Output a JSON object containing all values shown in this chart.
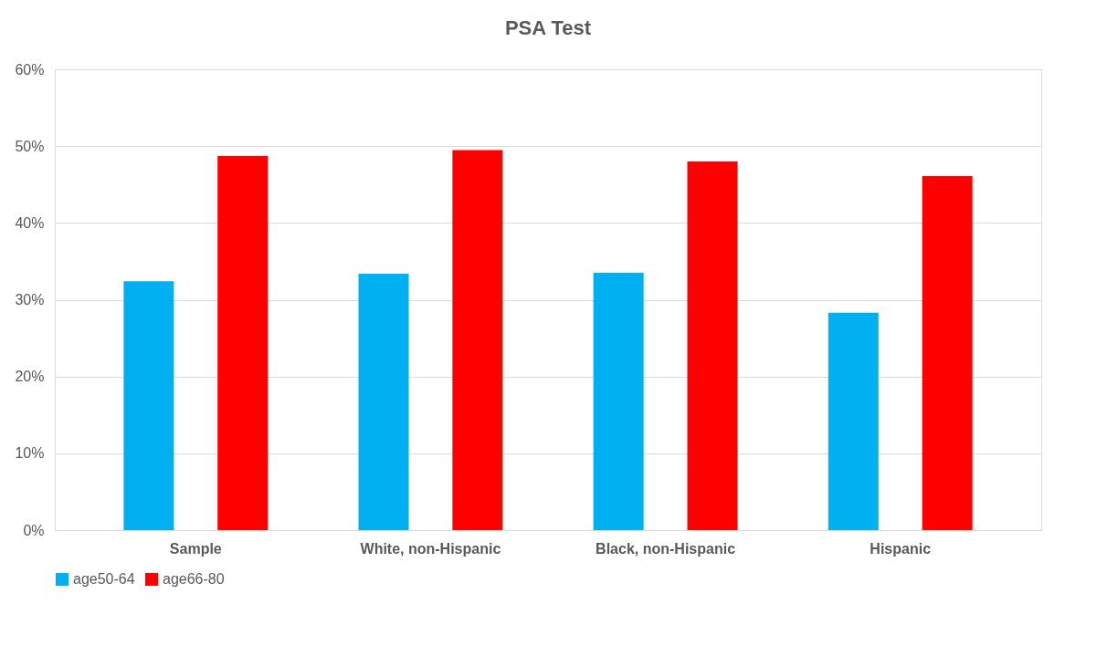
{
  "chart_data": {
    "type": "bar",
    "title": "PSA Test",
    "categories": [
      "Sample",
      "White, non-Hispanic",
      "Black, non-Hispanic",
      "Hispanic"
    ],
    "series": [
      {
        "name": "age50-64",
        "color": "#00b0f0",
        "values": [
          32.4,
          33.4,
          33.5,
          28.3
        ]
      },
      {
        "name": "age66-80",
        "color": "#ff0000",
        "values": [
          48.7,
          49.5,
          48.0,
          46.1
        ]
      }
    ],
    "ylim": [
      0,
      60
    ],
    "yticks": [
      {
        "value": 0,
        "label": "0%"
      },
      {
        "value": 10,
        "label": "10%"
      },
      {
        "value": 20,
        "label": "20%"
      },
      {
        "value": 30,
        "label": "30%"
      },
      {
        "value": 40,
        "label": "40%"
      },
      {
        "value": 50,
        "label": "50%"
      },
      {
        "value": 60,
        "label": "60%"
      }
    ],
    "grid": "y",
    "legend": "bottom"
  }
}
